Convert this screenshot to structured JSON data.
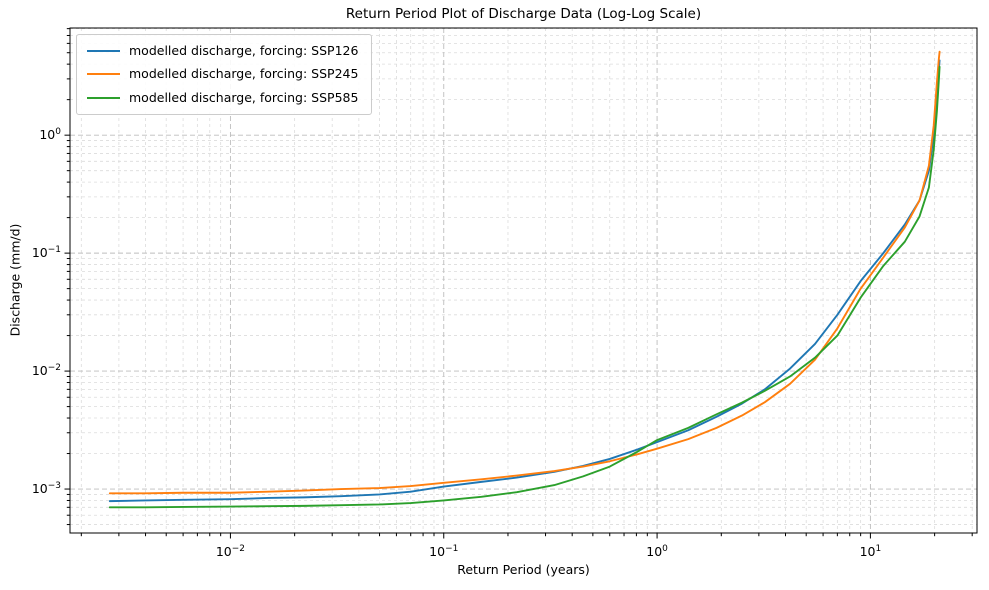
{
  "chart_data": {
    "type": "line",
    "title": "Return Period Plot of Discharge Data (Log-Log Scale)",
    "xlabel": "Return Period (years)",
    "ylabel": "Discharge (mm/d)",
    "xscale": "log",
    "yscale": "log",
    "xlim": [
      0.00177,
      31.6
    ],
    "ylim": [
      0.000424,
      8.1
    ],
    "x_major_ticks": [
      0.01,
      0.1,
      1,
      10
    ],
    "y_major_ticks": [
      0.001,
      0.01,
      0.1,
      1
    ],
    "grid": "major and minor gridlines, dashed gray, both axes",
    "legend_position": "upper left",
    "x": [
      0.00272,
      0.004,
      0.006,
      0.01,
      0.015,
      0.022,
      0.033,
      0.05,
      0.07,
      0.1,
      0.15,
      0.22,
      0.33,
      0.45,
      0.6,
      0.8,
      1.0,
      1.4,
      1.9,
      2.5,
      3.2,
      4.2,
      5.5,
      7.0,
      9.0,
      11.5,
      14.5,
      17.0,
      18.8,
      19.8,
      20.5,
      20.9,
      21.1
    ],
    "series": [
      {
        "name": "modelled discharge, forcing: SSP126",
        "color": "#1f77b4",
        "values": [
          0.00079,
          0.0008,
          0.00081,
          0.00082,
          0.00084,
          0.00085,
          0.00087,
          0.0009,
          0.00095,
          0.00105,
          0.00115,
          0.00125,
          0.0014,
          0.00157,
          0.0018,
          0.00215,
          0.0025,
          0.00315,
          0.0041,
          0.0053,
          0.007,
          0.0105,
          0.017,
          0.03,
          0.058,
          0.1,
          0.175,
          0.28,
          0.5,
          1.0,
          2.2,
          3.5,
          4.3
        ]
      },
      {
        "name": "modelled discharge, forcing: SSP245",
        "color": "#ff7f0e",
        "values": [
          0.00092,
          0.00092,
          0.00093,
          0.00093,
          0.00095,
          0.00097,
          0.001,
          0.00102,
          0.00106,
          0.00113,
          0.00121,
          0.0013,
          0.00142,
          0.00155,
          0.00172,
          0.00196,
          0.0022,
          0.00265,
          0.0033,
          0.0042,
          0.00545,
          0.0078,
          0.0125,
          0.023,
          0.05,
          0.092,
          0.165,
          0.28,
          0.55,
          1.2,
          2.8,
          4.3,
          5.1
        ]
      },
      {
        "name": "modelled discharge, forcing: SSP585",
        "color": "#2ca02c",
        "values": [
          0.0007,
          0.0007,
          0.000705,
          0.00071,
          0.000715,
          0.00072,
          0.00073,
          0.00074,
          0.00076,
          0.0008,
          0.00086,
          0.00094,
          0.00108,
          0.00128,
          0.00155,
          0.00205,
          0.0026,
          0.0033,
          0.0043,
          0.0054,
          0.0068,
          0.009,
          0.013,
          0.02,
          0.042,
          0.078,
          0.125,
          0.205,
          0.36,
          0.75,
          1.6,
          2.8,
          3.8
        ]
      }
    ]
  }
}
